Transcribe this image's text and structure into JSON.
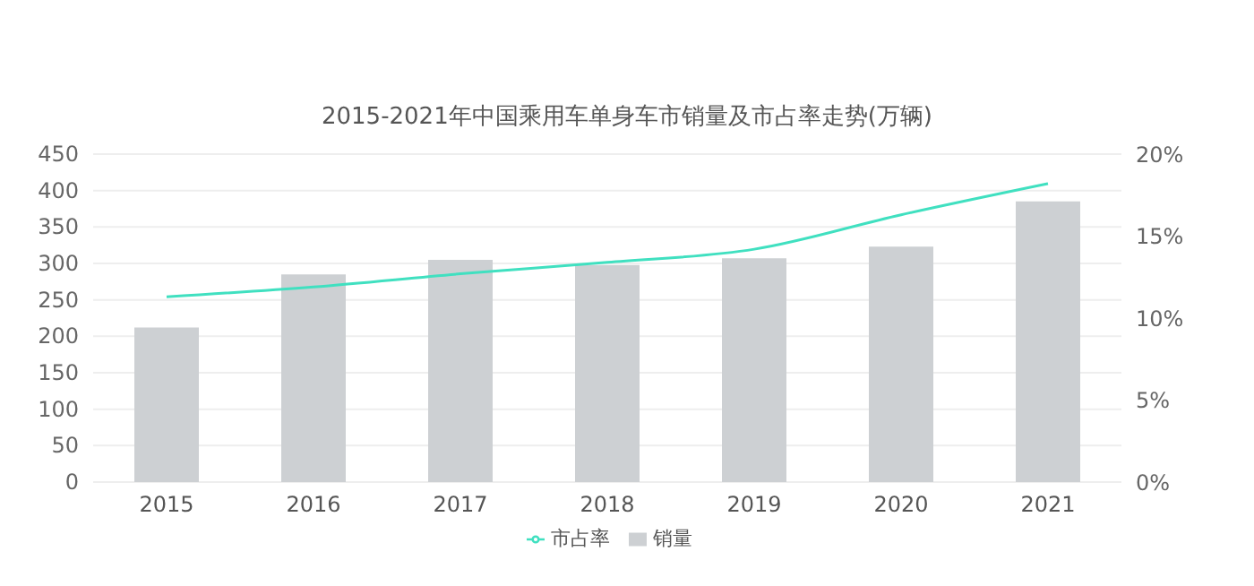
{
  "chart_data": {
    "type": "bar",
    "title": "2015-2021年中国乘用车单身车市销量及市占率走势(万辆)",
    "categories": [
      "2015",
      "2016",
      "2017",
      "2018",
      "2019",
      "2020",
      "2021"
    ],
    "series": [
      {
        "name": "销量",
        "color": "#cdd0d3",
        "values": [
          212,
          285,
          305,
          298,
          307,
          323,
          385
        ]
      },
      {
        "name": "市占率",
        "type": "line",
        "axis": "y2",
        "color": "#40e0c0",
        "values": [
          11.3,
          11.9,
          12.7,
          13.4,
          14.2,
          16.3,
          18.2
        ]
      }
    ],
    "ylim": [
      0,
      450
    ],
    "yticks": [
      0,
      50,
      100,
      150,
      200,
      250,
      300,
      350,
      400,
      450
    ],
    "y2lim": [
      0,
      20
    ],
    "y2ticks": [
      {
        "value": 0,
        "label": "0%"
      },
      {
        "value": 5,
        "label": "5%"
      },
      {
        "value": 10,
        "label": "10%"
      },
      {
        "value": 15,
        "label": "15%"
      },
      {
        "value": 20,
        "label": "20%"
      }
    ],
    "grid": "y",
    "legend": "bottom",
    "marker": "none"
  }
}
